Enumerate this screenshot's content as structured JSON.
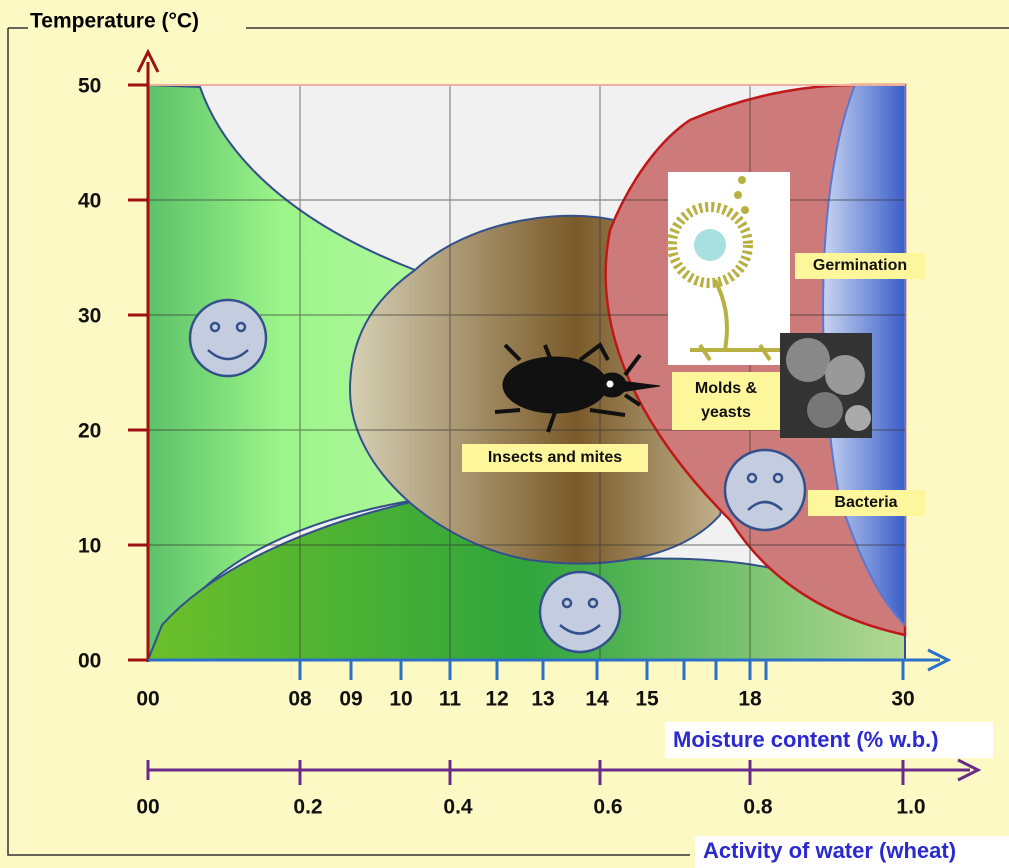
{
  "y_axis": {
    "title": "Temperature (°C)",
    "ticks": [
      "50",
      "40",
      "30",
      "20",
      "10",
      "00"
    ]
  },
  "moisture_axis": {
    "title": "Moisture content (% w.b.)",
    "ticks": [
      "00",
      "08",
      "09",
      "10",
      "11",
      "12",
      "13",
      "14",
      "15",
      "18",
      "30"
    ]
  },
  "water_activity_axis": {
    "title": "Activity of water (wheat)",
    "ticks": [
      "00",
      "0.2",
      "0.4",
      "0.6",
      "0.8",
      "1.0"
    ]
  },
  "labels": {
    "germination": "Germination",
    "molds": "Molds &",
    "yeasts": "yeasts",
    "insects": "Insects and mites",
    "bacteria": "Bacteria"
  }
}
